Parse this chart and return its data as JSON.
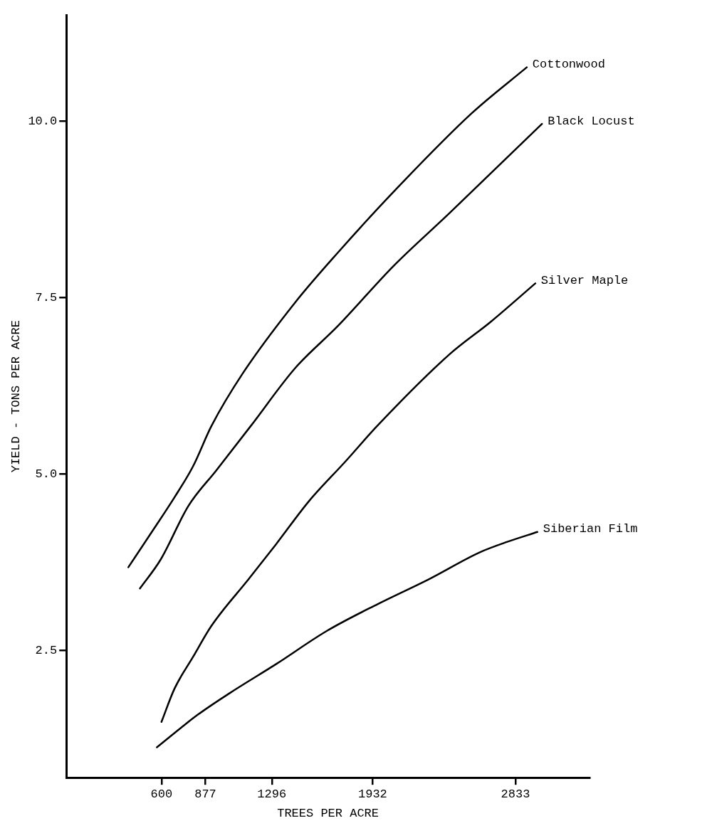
{
  "chart_data": {
    "type": "line",
    "xlabel": "TREES PER ACRE",
    "ylabel": "YIELD - TONS PER ACRE",
    "xlim": [
      0,
      3300
    ],
    "xticks": [
      600,
      877,
      1296,
      1932,
      2833
    ],
    "ylim": [
      0.7,
      11.5
    ],
    "yticks": [
      {
        "value": 2.5,
        "label": "2.5"
      },
      {
        "value": 5,
        "label": "5.0"
      },
      {
        "value": 7.5,
        "label": "7.5"
      },
      {
        "value": 10,
        "label": "10.0"
      }
    ],
    "grid": false,
    "legend": false,
    "marker": "none",
    "line_style": "solid",
    "series": [
      {
        "name": "Cottonwood",
        "color": "#000000",
        "x": [
          391,
          536,
          682,
          799,
          915,
          1111,
          1443,
          1714,
          2065,
          2557,
          2904
        ],
        "values": [
          3.68,
          4.17,
          4.67,
          5.11,
          5.68,
          6.42,
          7.43,
          8.14,
          9.0,
          10.11,
          10.76
        ]
      },
      {
        "name": "Black Locust",
        "color": "#000000",
        "x": [
          464,
          595,
          770,
          945,
          1163,
          1443,
          1714,
          2065,
          2414,
          3000
        ],
        "values": [
          3.38,
          3.79,
          4.55,
          5.05,
          5.68,
          6.5,
          7.1,
          7.95,
          8.69,
          9.96
        ]
      },
      {
        "name": "Silver Maple",
        "color": "#000000",
        "x": [
          600,
          682,
          799,
          915,
          1149,
          1324,
          1528,
          1761,
          1960,
          2414,
          2679,
          2958
        ],
        "values": [
          1.49,
          1.96,
          2.41,
          2.85,
          3.51,
          4.01,
          4.61,
          5.18,
          5.68,
          6.69,
          7.16,
          7.7
        ]
      },
      {
        "name": "Siberian Film",
        "color": "#000000",
        "x": [
          571,
          828,
          1032,
          1324,
          1644,
          1965,
          2286,
          2606,
          2781,
          2971
        ],
        "values": [
          1.13,
          1.59,
          1.9,
          2.31,
          2.78,
          3.16,
          3.51,
          3.89,
          4.04,
          4.18
        ]
      }
    ]
  }
}
